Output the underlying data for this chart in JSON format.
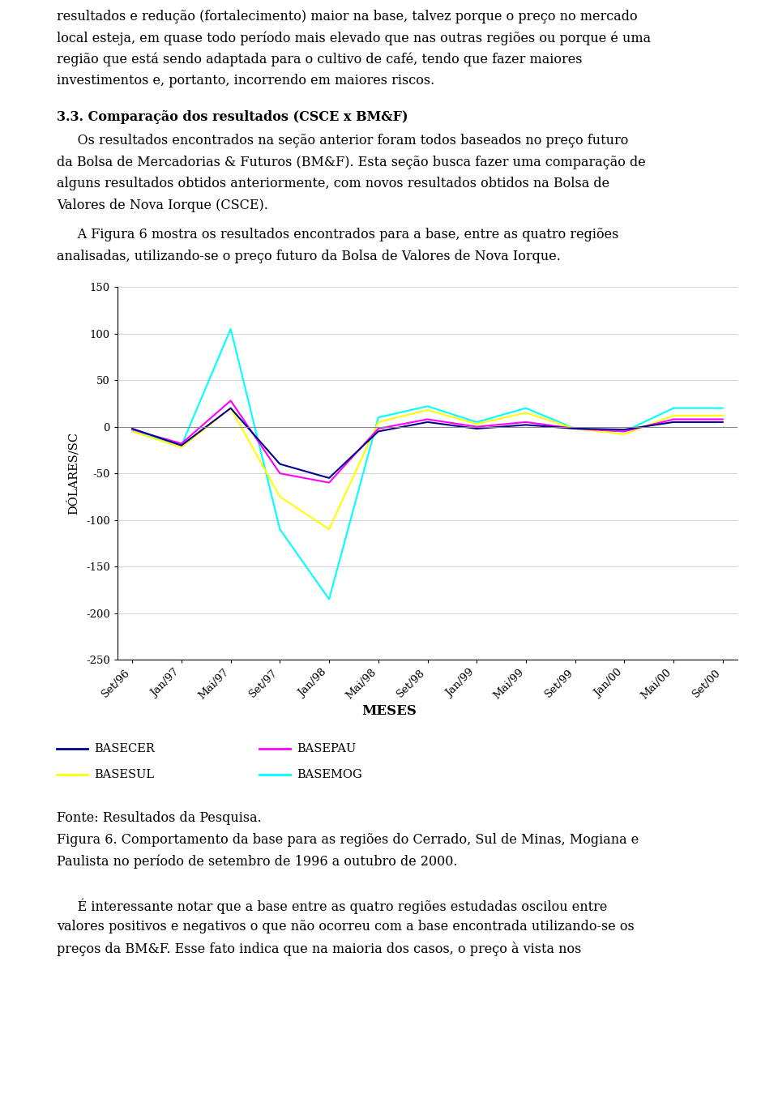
{
  "page_width": 9.6,
  "page_height": 13.76,
  "background_color": "#ffffff",
  "top_text_lines": [
    "resultados e redução (fortalecimento) maior na base, talvez porque o preço no mercado",
    "local esteja, em quase todo período mais elevado que nas outras regiões ou porque é uma",
    "região que está sendo adaptada para o cultivo de café, tendo que fazer maiores",
    "investimentos e, portanto, incorrendo em maiores riscos."
  ],
  "section_title": "3.3. Comparação dos resultados (CSCE x BM&F)",
  "para1_lines": [
    "     Os resultados encontrados na seção anterior foram todos baseados no preço futuro",
    "da Bolsa de Mercadorias & Futuros (BM&F). Esta seção busca fazer uma comparação de",
    "alguns resultados obtidos anteriormente, com novos resultados obtidos na Bolsa de",
    "Valores de Nova Iorque (CSCE)."
  ],
  "para2_lines": [
    "     A Figura 6 mostra os resultados encontrados para a base, entre as quatro regiões",
    "analisadas, utilizando-se o preço futuro da Bolsa de Valores de Nova Iorque."
  ],
  "xlabel": "MESES",
  "ylabel": "DÓLARES/SC",
  "ylim": [
    -250,
    150
  ],
  "yticks": [
    150,
    100,
    50,
    0,
    -50,
    -100,
    -150,
    -200,
    -250
  ],
  "xtick_labels": [
    "Set/96",
    "Jan/97",
    "Mai/97",
    "Set/97",
    "Jan/98",
    "Mai/98",
    "Set/98",
    "Jan/99",
    "Mai/99",
    "Set/99",
    "Jan/00",
    "Mai/00",
    "Set/00"
  ],
  "series_colors": {
    "BASECER": "#00008B",
    "BASEPAU": "#FF00FF",
    "BASESUL": "#FFFF00",
    "BASEMOG": "#00FFFF"
  },
  "series_linewidth": 1.5,
  "BASECER": [
    -2,
    -20,
    20,
    -40,
    -55,
    -5,
    5,
    -2,
    2,
    -2,
    -3,
    5,
    5
  ],
  "BASEPAU": [
    -3,
    -18,
    28,
    -50,
    -60,
    -2,
    8,
    0,
    5,
    -2,
    -5,
    8,
    8
  ],
  "BASESUL": [
    -5,
    -22,
    20,
    -75,
    -110,
    5,
    18,
    3,
    15,
    -2,
    -8,
    12,
    12
  ],
  "BASEMOG": [
    -5,
    -20,
    105,
    -110,
    -185,
    10,
    22,
    5,
    20,
    -2,
    -5,
    20,
    20
  ],
  "fonte_text": "Fonte: Resultados da Pesquisa.",
  "figura_lines": [
    "Figura 6. Comportamento da base para as regiões do Cerrado, Sul de Minas, Mogiana e",
    "Paulista no período de setembro de 1996 a outubro de 2000."
  ],
  "bottom_text_lines": [
    "     É interessante notar que a base entre as quatro regiões estudadas oscilou entre",
    "valores positivos e negativos o que não ocorreu com a base encontrada utilizando-se os",
    "preços da BM&F. Esse fato indica que na maioria dos casos, o preço à vista nos"
  ]
}
